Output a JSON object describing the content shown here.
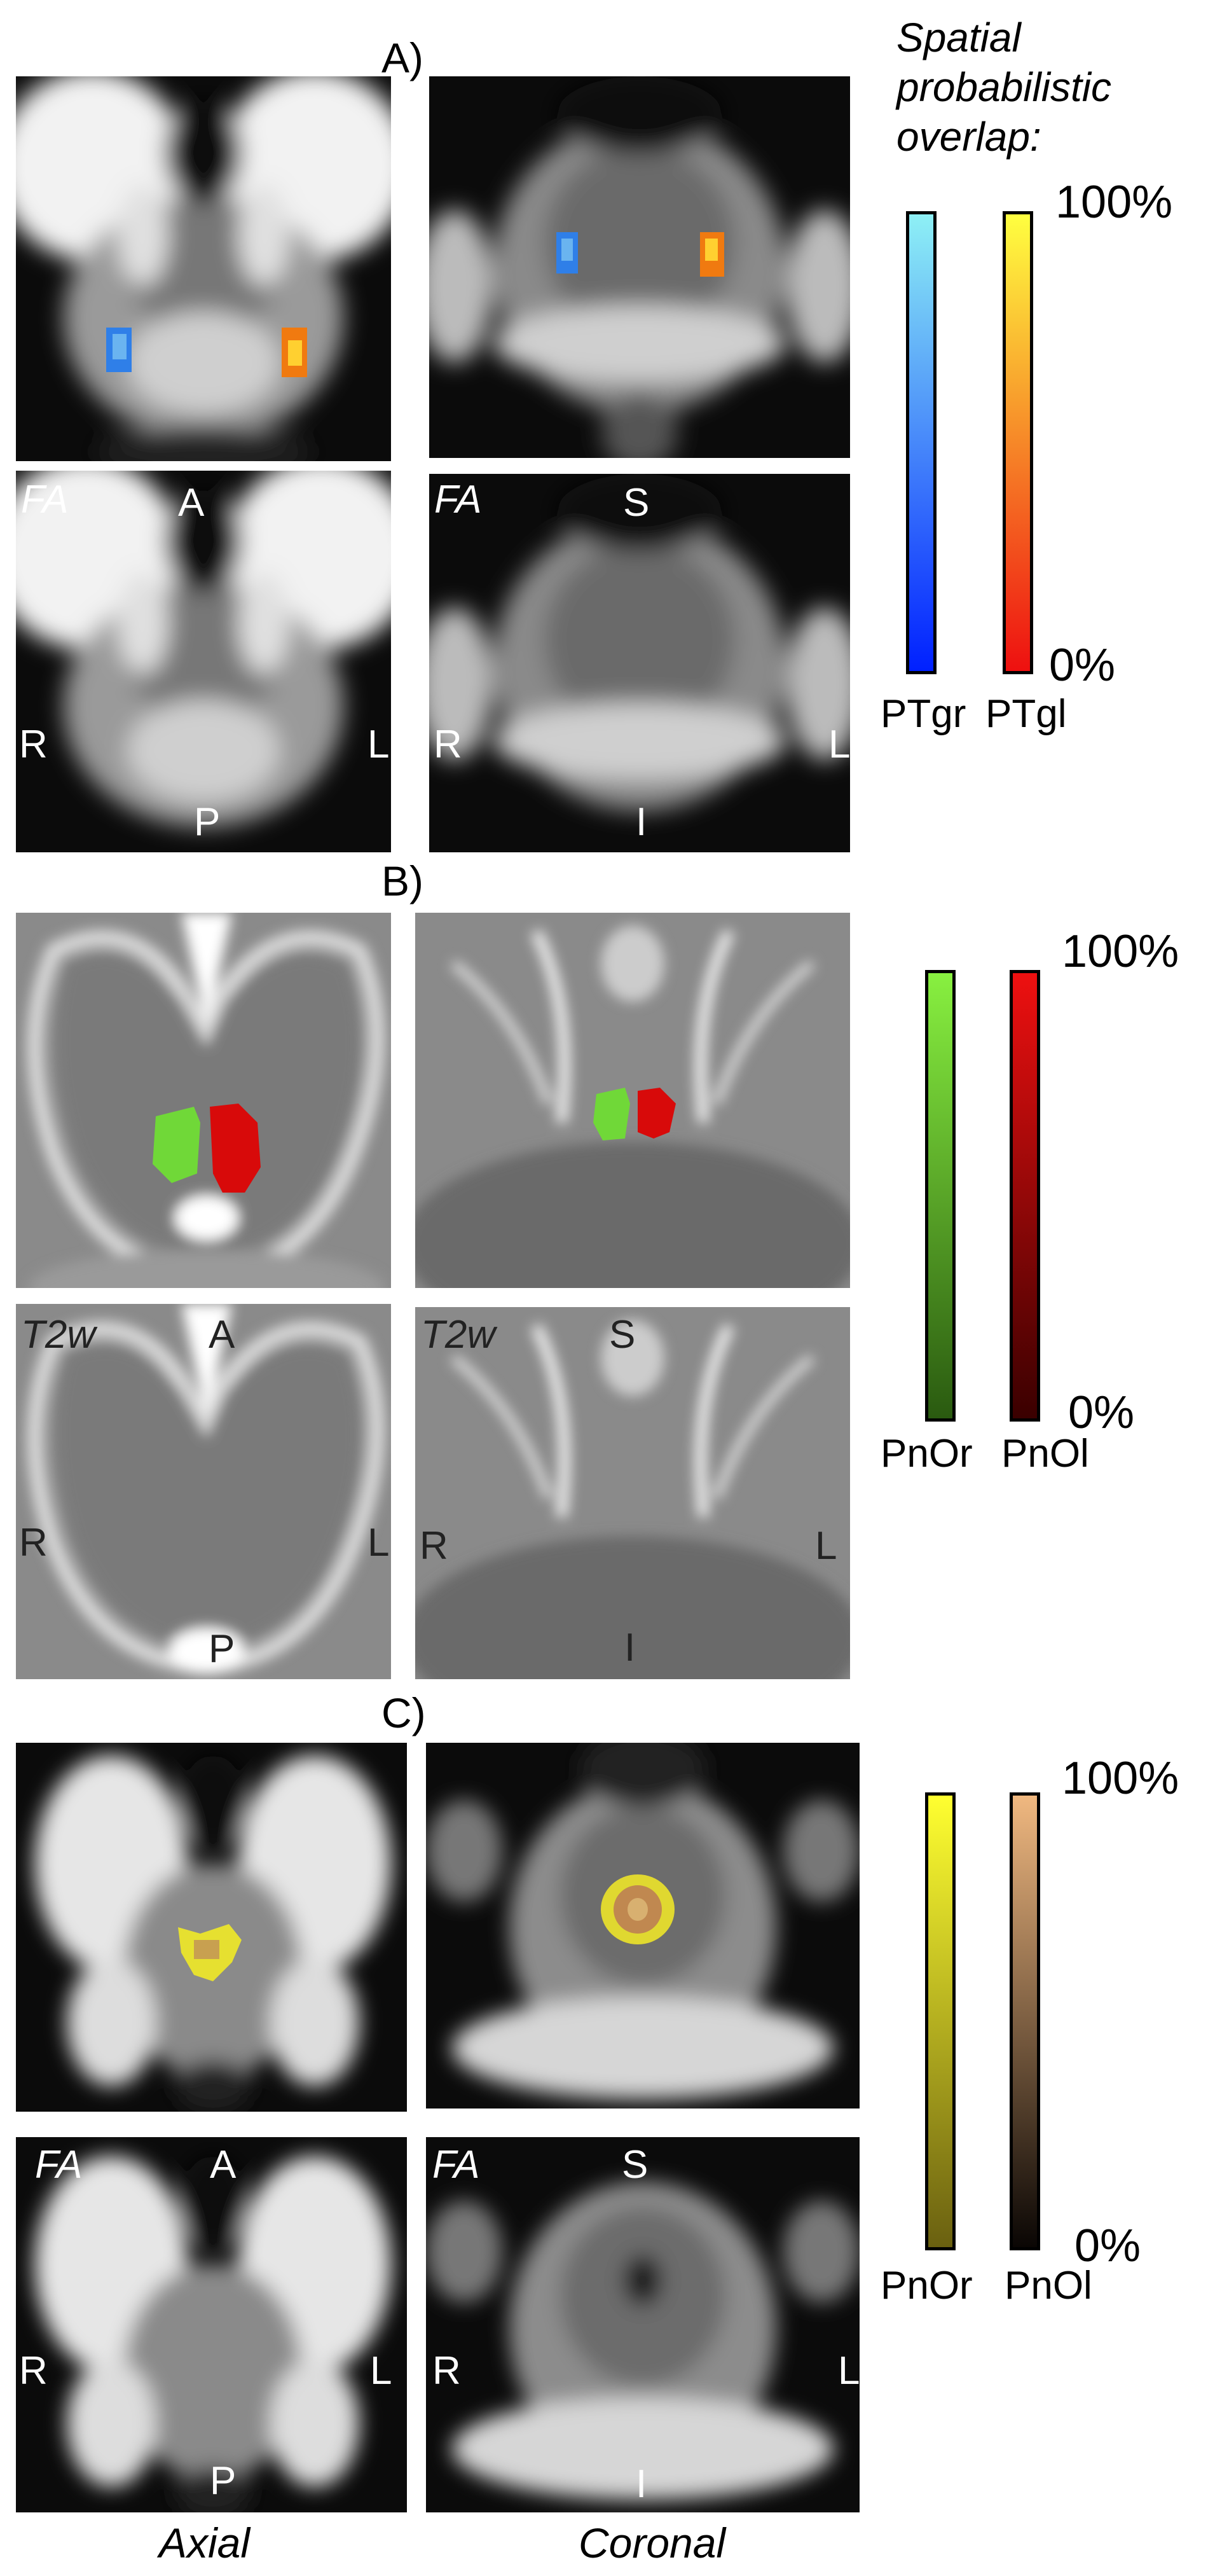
{
  "sections": {
    "a": {
      "label": "A)",
      "legend_title_lines": [
        "Spatial",
        "probabilistic",
        "overlap:"
      ],
      "colorbar_max": "100%",
      "colorbar_min": "0%",
      "colorbars": [
        {
          "name": "PTgr",
          "gradient_top": "#8ef0f5",
          "gradient_bottom": "#0020ff"
        },
        {
          "name": "PTgl",
          "gradient_top": "#ffff40",
          "gradient_bottom": "#ee1010"
        }
      ],
      "modality": "FA",
      "orientation": {
        "anterior": "A",
        "posterior": "P",
        "superior": "S",
        "inferior": "I",
        "right": "R",
        "left": "L"
      }
    },
    "b": {
      "label": "B)",
      "colorbar_max": "100%",
      "colorbar_min": "0%",
      "colorbars": [
        {
          "name": "PnOr",
          "gradient_top": "#88f040",
          "gradient_bottom": "#2a5a10"
        },
        {
          "name": "PnOl",
          "gradient_top": "#ee1010",
          "gradient_bottom": "#3a0000"
        }
      ],
      "modality": "T2w",
      "orientation": {
        "anterior": "A",
        "posterior": "P",
        "superior": "S",
        "inferior": "I",
        "right": "R",
        "left": "L"
      }
    },
    "c": {
      "label": "C)",
      "colorbar_max": "100%",
      "colorbar_min": "0%",
      "colorbars": [
        {
          "name": "PnOr",
          "gradient_top": "#ffff30",
          "gradient_bottom": "#6a6010"
        },
        {
          "name": "PnOl",
          "gradient_top": "#f0b880",
          "gradient_bottom": "#0a0604"
        }
      ],
      "modality": "FA",
      "orientation": {
        "anterior": "A",
        "posterior": "P",
        "superior": "S",
        "inferior": "I",
        "right": "R",
        "left": "L"
      }
    }
  },
  "axis_names": {
    "axial": "Axial",
    "coronal": "Coronal"
  }
}
